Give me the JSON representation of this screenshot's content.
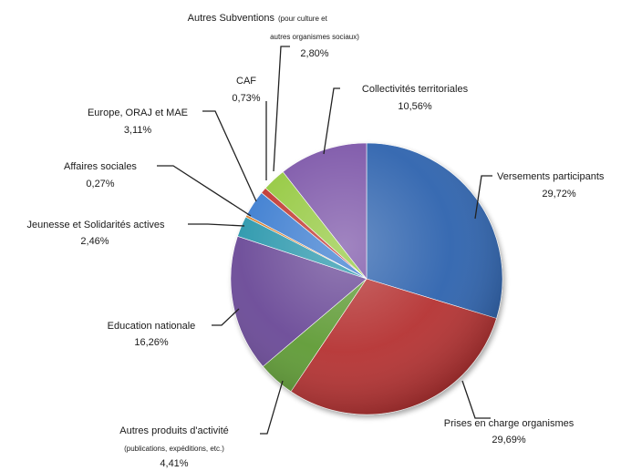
{
  "chart_data": {
    "type": "pie",
    "title": "",
    "slices": [
      {
        "label": "Versements participants",
        "value_label": "29,72%",
        "value": 29.72,
        "color": "#2e64ae"
      },
      {
        "label": "Prises en charge organismes",
        "value_label": "29,69%",
        "value": 29.69,
        "color": "#b53330"
      },
      {
        "label": "Autres produits d'activité",
        "sublabel": "(publications, expéditions, etc.)",
        "value_label": "4,41%",
        "value": 4.41,
        "color": "#5f9b35"
      },
      {
        "label": "Education nationale",
        "value_label": "16,26%",
        "value": 16.26,
        "color": "#6b4897"
      },
      {
        "label": "Jeunesse et Solidarités actives",
        "value_label": "2,46%",
        "value": 2.46,
        "color": "#2c97ac"
      },
      {
        "label": "Affaires sociales",
        "value_label": "0,27%",
        "value": 0.27,
        "color": "#d97a23"
      },
      {
        "label": "Europe, ORAJ et MAE",
        "value_label": "3,11%",
        "value": 3.11,
        "color": "#3a7bd0"
      },
      {
        "label": "CAF",
        "value_label": "0,73%",
        "value": 0.73,
        "color": "#c0342e"
      },
      {
        "label": "Autres Subventions",
        "sublabel_1": "(pour culture et",
        "sublabel_2": "autres organismes sociaux)",
        "value_label": "2,80%",
        "value": 2.8,
        "color": "#93c83e"
      },
      {
        "label": "Collectivités territoriales",
        "value_label": "10,56%",
        "value": 10.56,
        "color": "#7b55a8"
      }
    ],
    "start_angle_deg": 0,
    "direction": "clockwise"
  }
}
